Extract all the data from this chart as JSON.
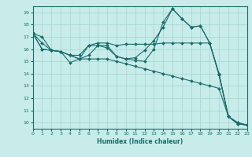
{
  "xlabel": "Humidex (Indice chaleur)",
  "background_color": "#c8ecea",
  "grid_color": "#a8d8d8",
  "line_color": "#1a6b6a",
  "xlim": [
    0,
    23
  ],
  "ylim": [
    9.5,
    19.5
  ],
  "x": [
    0,
    1,
    2,
    3,
    4,
    5,
    6,
    7,
    8,
    9,
    10,
    11,
    12,
    13,
    14,
    15,
    16,
    17,
    18,
    19,
    20,
    21,
    22,
    23
  ],
  "series": [
    [
      17.3,
      17.0,
      15.9,
      15.8,
      14.9,
      15.2,
      16.3,
      16.3,
      16.1,
      15.4,
      15.2,
      15.3,
      15.9,
      16.7,
      17.8,
      19.3,
      18.5,
      17.8,
      17.9,
      16.5,
      13.9,
      10.5,
      9.9,
      9.8
    ],
    [
      17.3,
      16.5,
      15.9,
      15.8,
      15.5,
      15.5,
      16.3,
      16.5,
      16.5,
      16.3,
      16.4,
      16.4,
      16.4,
      16.4,
      16.5,
      16.5,
      16.5,
      16.5,
      16.5,
      16.5,
      14.0,
      10.5,
      10.0,
      9.8
    ],
    [
      17.3,
      16.0,
      15.9,
      15.8,
      15.5,
      15.2,
      15.2,
      15.2,
      15.2,
      15.0,
      14.8,
      14.6,
      14.4,
      14.2,
      14.0,
      13.8,
      13.6,
      13.4,
      13.2,
      13.0,
      12.8,
      10.5,
      10.0,
      9.8
    ],
    [
      17.3,
      16.0,
      15.9,
      15.8,
      15.5,
      15.2,
      15.5,
      16.3,
      16.3,
      15.4,
      15.2,
      15.1,
      15.0,
      16.0,
      18.2,
      19.3,
      18.5,
      17.8,
      17.9,
      16.5,
      13.9,
      10.5,
      9.9,
      9.8
    ]
  ],
  "yticks": [
    10,
    11,
    12,
    13,
    14,
    15,
    16,
    17,
    18,
    19
  ],
  "xticks": [
    0,
    1,
    2,
    3,
    4,
    5,
    6,
    7,
    8,
    9,
    10,
    11,
    12,
    13,
    14,
    15,
    16,
    17,
    18,
    19,
    20,
    21,
    22,
    23
  ]
}
